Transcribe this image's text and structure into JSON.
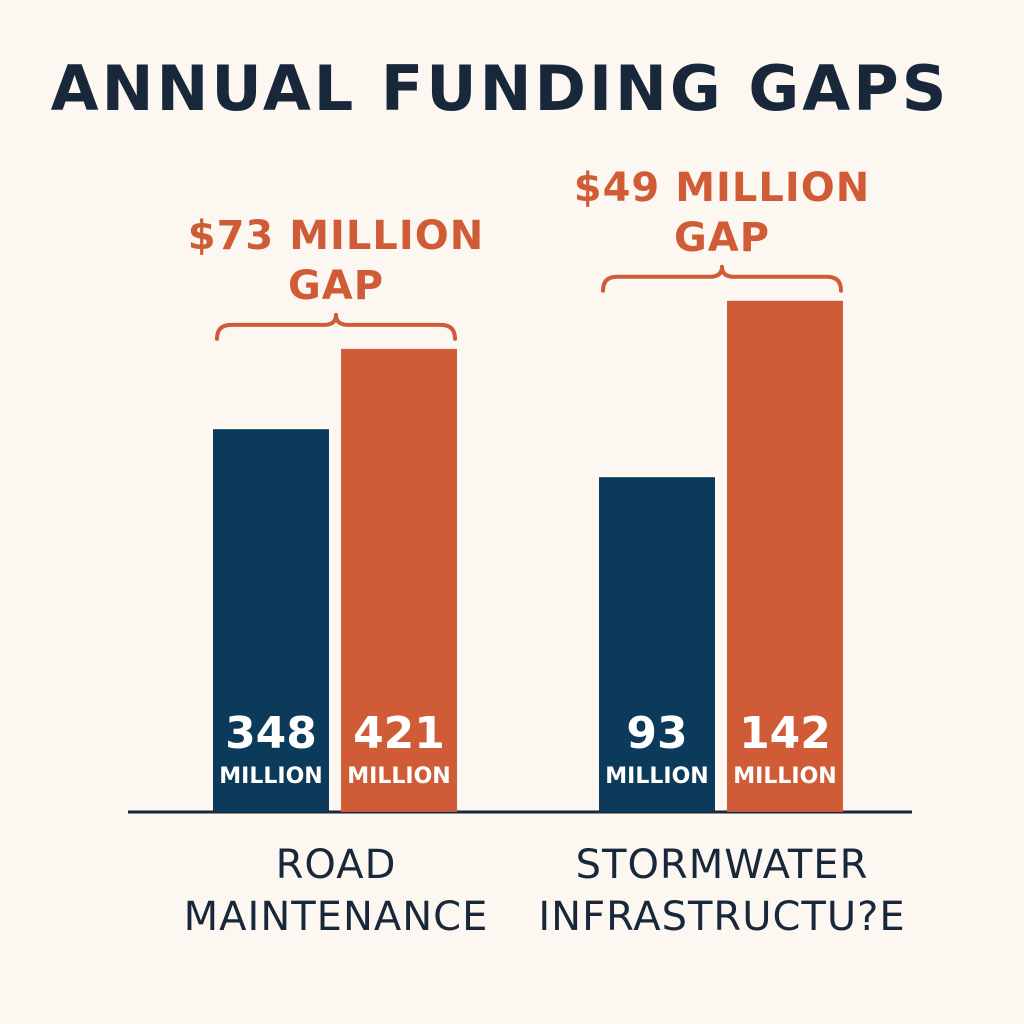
{
  "colors": {
    "background": "#fcf8f1",
    "current": "#0c3a5b",
    "needed": "#d05c37",
    "text": "#18283a",
    "axis": "#18283a"
  },
  "chart_data": {
    "type": "bar",
    "title": "ANNUAL FUNDING GAPS",
    "xlabel": "",
    "ylabel": "",
    "grid": false,
    "legend": "none",
    "categories": [
      "ROAD MAINTENANCE",
      "STORMWATER INFRASTRUCTU?E"
    ],
    "category_lines": [
      [
        "ROAD",
        "MAINTENANCE"
      ],
      [
        "STORMWATER",
        "INFRASTRUCTU?E"
      ]
    ],
    "unit_label": "MILLION",
    "groups": [
      {
        "category": "ROAD MAINTENANCE",
        "values": [
          348,
          421
        ],
        "value_labels": [
          "348",
          "421"
        ],
        "gap_label_lines": [
          "$73 MILLION",
          "GAP"
        ]
      },
      {
        "category": "STORMWATER INFRASTRUCTU?E",
        "values": [
          93,
          142
        ],
        "value_labels": [
          "93",
          "142"
        ],
        "gap_label_lines": [
          "$49 MILLION",
          "GAP"
        ]
      }
    ]
  }
}
